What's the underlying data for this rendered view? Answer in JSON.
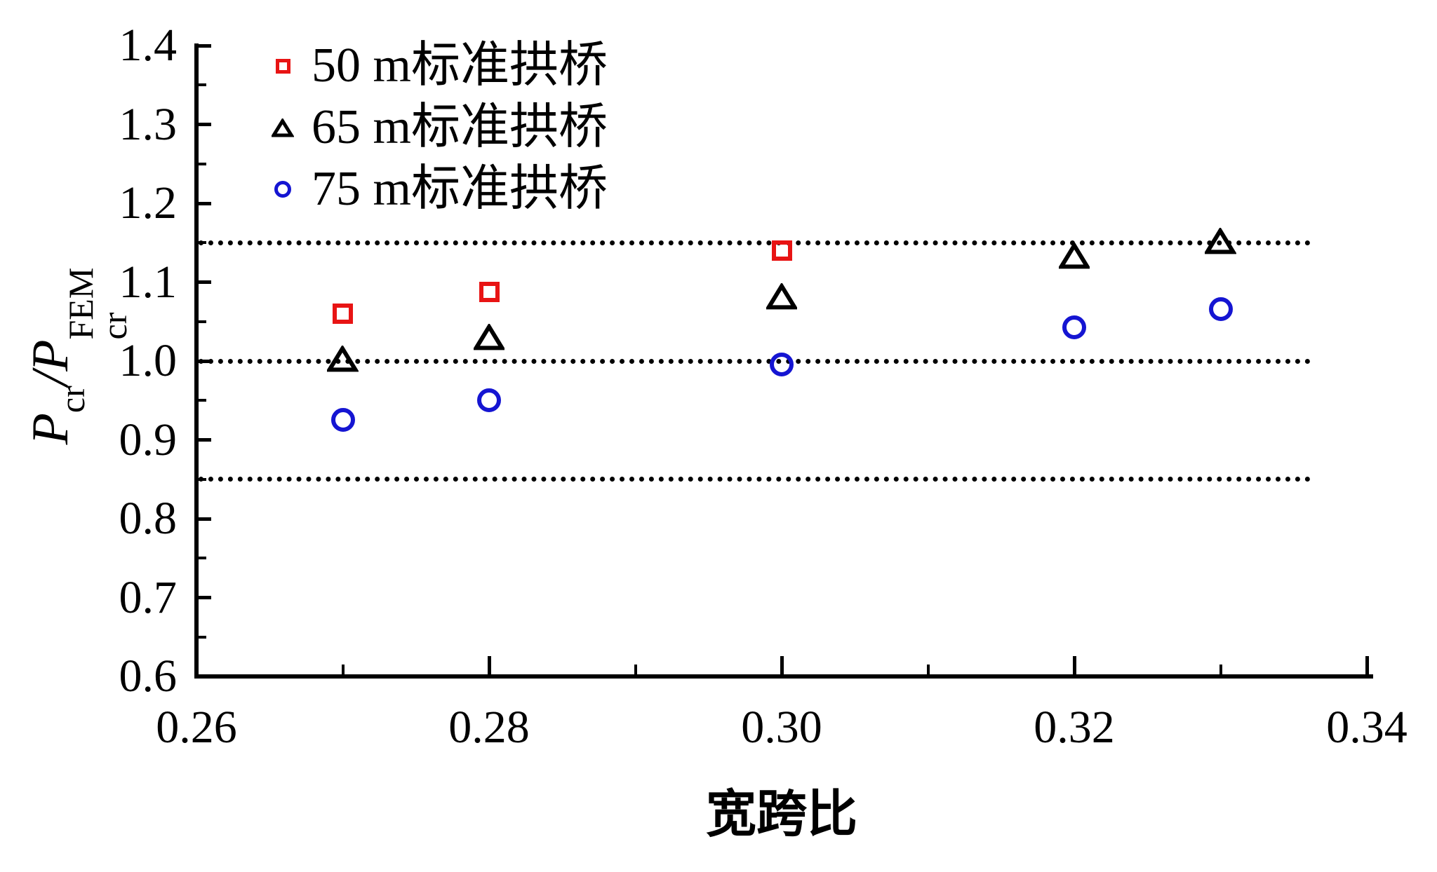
{
  "figure": {
    "background": "#ffffff",
    "x_axis_title": "宽跨比",
    "y_axis_title": {
      "p1": "P",
      "sub1": "cr",
      "slash": "/",
      "p2": "P",
      "sub2": "cr",
      "sup2": "FEM"
    },
    "colors": {
      "series_50m": "#e81414",
      "series_65m": "#000000",
      "series_75m": "#1515d2",
      "axis": "#000000"
    },
    "legend": [
      {
        "label": "50 m标准拱桥",
        "marker": "square",
        "color": "#e81414"
      },
      {
        "label": "65 m标准拱桥",
        "marker": "triangle",
        "color": "#000000"
      },
      {
        "label": "75 m标准拱桥",
        "marker": "circle",
        "color": "#1515d2"
      }
    ]
  },
  "chart_data": {
    "type": "scatter",
    "title": "",
    "xlabel": "宽跨比",
    "ylabel": "Pcr/Pcr^FEM",
    "xlim": [
      0.26,
      0.34
    ],
    "ylim": [
      0.6,
      1.4
    ],
    "grid": false,
    "legend_position": "upper-left-inside",
    "x_major_ticks": [
      0.28,
      0.3,
      0.32,
      0.34
    ],
    "x_minor_ticks": [
      0.27,
      0.29,
      0.31,
      0.33
    ],
    "x_tick_labels": [
      {
        "value": 0.26,
        "label": "0.26"
      },
      {
        "value": 0.28,
        "label": "0.28"
      },
      {
        "value": 0.3,
        "label": "0.30"
      },
      {
        "value": 0.32,
        "label": "0.32"
      },
      {
        "value": 0.34,
        "label": "0.34"
      }
    ],
    "y_major_ticks": [
      0.6,
      0.7,
      0.8,
      0.9,
      1.0,
      1.1,
      1.2,
      1.3,
      1.4
    ],
    "y_minor_ticks": [
      0.65,
      0.75,
      0.85,
      0.95,
      1.05,
      1.15,
      1.25,
      1.35
    ],
    "y_tick_labels": [
      {
        "value": 0.6,
        "label": "0.6"
      },
      {
        "value": 0.7,
        "label": "0.7"
      },
      {
        "value": 0.8,
        "label": "0.8"
      },
      {
        "value": 0.9,
        "label": "0.9"
      },
      {
        "value": 1.0,
        "label": "1.0"
      },
      {
        "value": 1.1,
        "label": "1.1"
      },
      {
        "value": 1.2,
        "label": "1.2"
      },
      {
        "value": 1.3,
        "label": "1.3"
      },
      {
        "value": 1.4,
        "label": "1.4"
      }
    ],
    "reference_lines": [
      1.15,
      1.0,
      0.85
    ],
    "series": [
      {
        "name": "50 m标准拱桥",
        "marker": "square",
        "color": "#e81414",
        "points": [
          [
            0.27,
            1.06
          ],
          [
            0.28,
            1.088
          ],
          [
            0.3,
            1.14
          ]
        ]
      },
      {
        "name": "65 m标准拱桥",
        "marker": "triangle",
        "color": "#000000",
        "points": [
          [
            0.27,
            1.003
          ],
          [
            0.28,
            1.03
          ],
          [
            0.3,
            1.082
          ],
          [
            0.32,
            1.133
          ],
          [
            0.33,
            1.152
          ]
        ]
      },
      {
        "name": "75 m标准拱桥",
        "marker": "circle",
        "color": "#1515d2",
        "points": [
          [
            0.27,
            0.925
          ],
          [
            0.28,
            0.95
          ],
          [
            0.3,
            0.996
          ],
          [
            0.32,
            1.043
          ],
          [
            0.33,
            1.066
          ]
        ]
      }
    ]
  }
}
